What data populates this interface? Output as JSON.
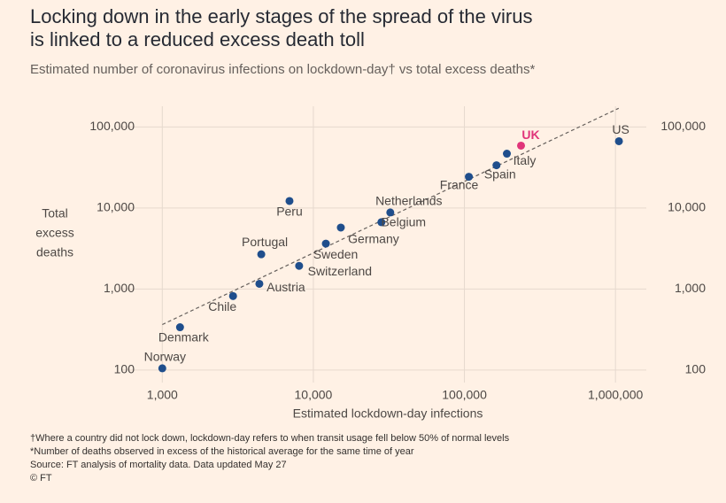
{
  "chart_data": {
    "type": "scatter",
    "title": [
      "Locking down in the early stages of the spread of the virus",
      "is linked to a reduced excess death toll"
    ],
    "subtitle": "Estimated number of coronavirus infections on lockdown-day† vs total excess deaths*",
    "xlabel": "Estimated lockdown-day infections",
    "ylabel": [
      "Total",
      "excess",
      "deaths"
    ],
    "xscale": "log",
    "yscale": "log",
    "grid": true,
    "xlim": [
      730,
      1600000
    ],
    "ylim": [
      70,
      180000
    ],
    "xticks": [
      {
        "value": 1000,
        "label": "1,000"
      },
      {
        "value": 10000,
        "label": "10,000"
      },
      {
        "value": 100000,
        "label": "100,000"
      },
      {
        "value": 1000000,
        "label": "1,000,000"
      }
    ],
    "yticks": [
      100,
      {
        "value": 1000,
        "label": "1,000"
      },
      {
        "value": 10000,
        "label": "10,000"
      },
      {
        "value": 100000,
        "label": "100,000"
      }
    ],
    "labels": [
      "Norway",
      "Denmark",
      "Chile",
      "Austria",
      "Portugal",
      "Peru",
      "Switzerland",
      "Sweden",
      "Germany",
      "Belgium",
      "Netherlands",
      "France",
      "Spain",
      "Italy",
      "UK",
      "US"
    ],
    "x": [
      1000,
      1310,
      2940,
      4390,
      4520,
      6950,
      8050,
      12100,
      15200,
      28200,
      32300,
      107000,
      163000,
      191000,
      237000,
      1054000
    ],
    "y": [
      105,
      337,
      817,
      1160,
      2680,
      12200,
      1930,
      3630,
      5730,
      6670,
      8800,
      24300,
      33700,
      46800,
      58800,
      66700
    ],
    "colors": [
      "#1f4e8c",
      "#1f4e8c",
      "#1f4e8c",
      "#1f4e8c",
      "#1f4e8c",
      "#1f4e8c",
      "#1f4e8c",
      "#1f4e8c",
      "#1f4e8c",
      "#1f4e8c",
      "#1f4e8c",
      "#1f4e8c",
      "#1f4e8c",
      "#1f4e8c",
      "#e0357a",
      "#1f4e8c"
    ],
    "trend": {
      "x": [
        1000,
        1050000
      ],
      "y": [
        364,
        170000
      ],
      "color": "#66605c"
    },
    "notes": [
      "†Where a country did not lock down, lockdown-day refers to when transit usage fell below 50% of normal levels",
      "*Number of deaths observed in excess of the historical average for the same time of year",
      "Source: FT analysis of mortality data. Data updated May 27",
      "© FT"
    ]
  }
}
